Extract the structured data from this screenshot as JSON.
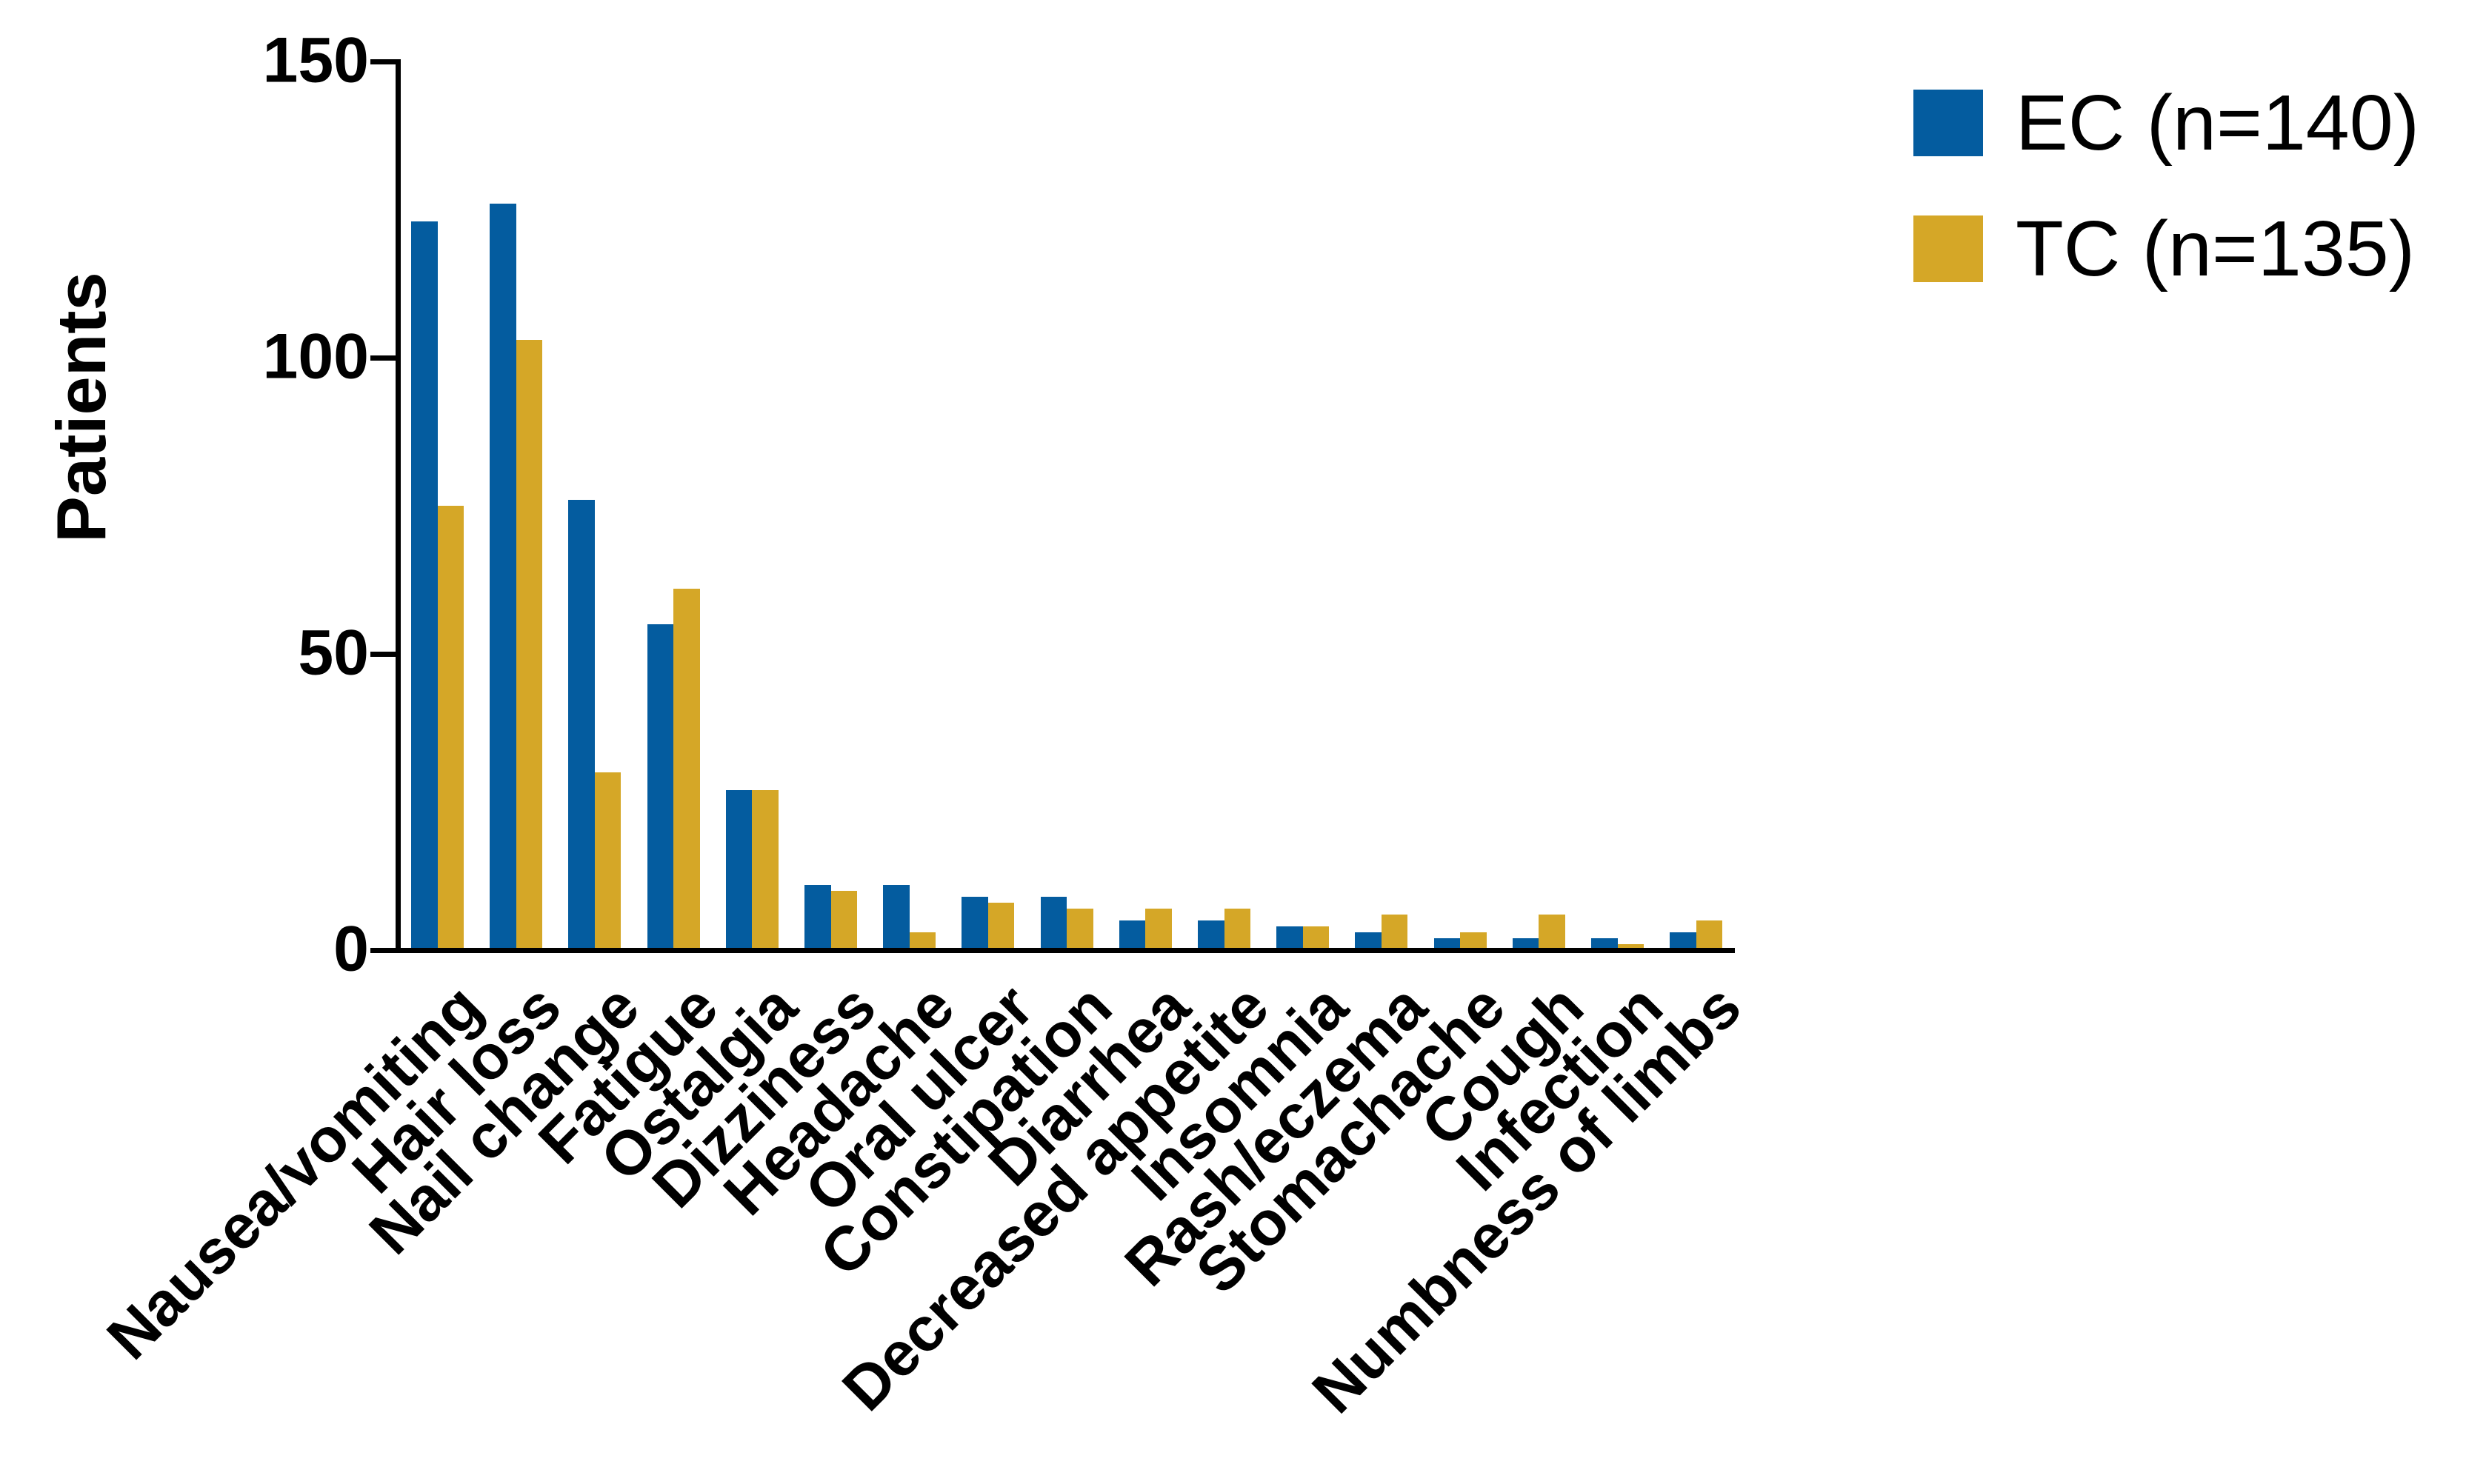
{
  "chart_data": {
    "type": "bar",
    "title": "",
    "xlabel": "",
    "ylabel": "Patients",
    "ylim": [
      0,
      150
    ],
    "yticks": [
      0,
      50,
      100,
      150
    ],
    "grid": false,
    "legend_position": "top-right",
    "categories": [
      "Nausea/vomiting",
      "Hair loss",
      "Nail change",
      "Fatigue",
      "Ostalgia",
      "Dizziness",
      "Headache",
      "Oral ulcer",
      "Constipation",
      "Diarrhea",
      "Decreased appetite",
      "Insomnia",
      "Rash/eczema",
      "Stomachache",
      "Cough",
      "Infection",
      "Numbness of limbs"
    ],
    "series": [
      {
        "name": "EC (n=140)",
        "color": "#045C9F",
        "values": [
          123,
          126,
          76,
          55,
          27,
          11,
          11,
          9,
          9,
          5,
          5,
          4,
          3,
          2,
          2,
          2,
          3
        ]
      },
      {
        "name": "TC (n=135)",
        "color": "#D5A727",
        "values": [
          75,
          103,
          30,
          61,
          27,
          10,
          3,
          8,
          7,
          7,
          7,
          4,
          6,
          3,
          6,
          1,
          5
        ]
      }
    ],
    "axis_color": "#000000",
    "text_color": "#000000"
  }
}
